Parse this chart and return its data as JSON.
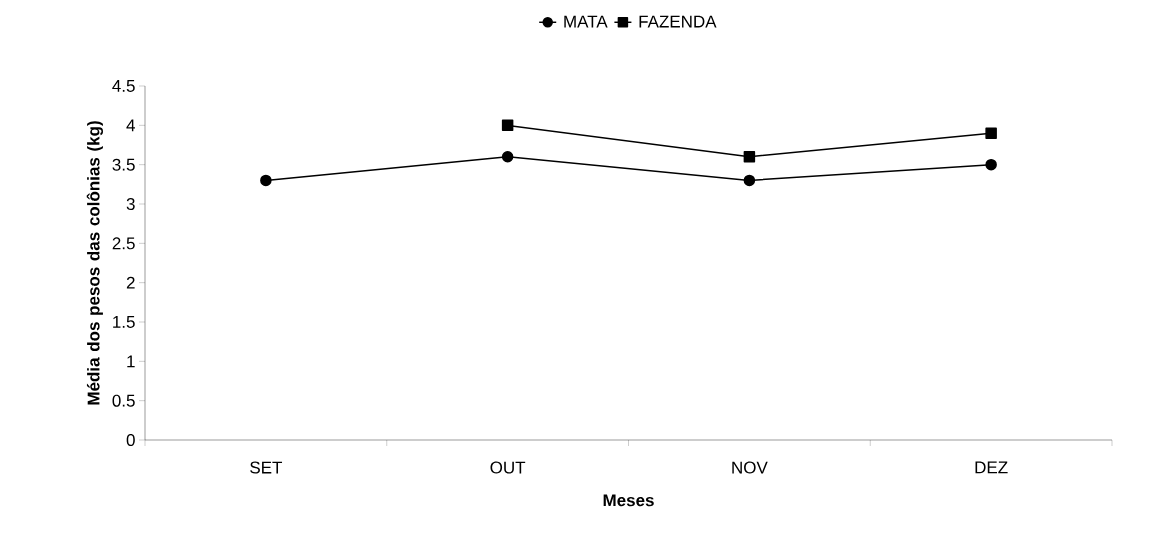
{
  "chart_data": {
    "type": "line",
    "xlabel": "Meses",
    "ylabel": "Média dos pesos das colônias (kg)",
    "categories": [
      "SET",
      "OUT",
      "NOV",
      "DEZ"
    ],
    "series": [
      {
        "name": "MATA",
        "color": "#000000",
        "marker": "circle",
        "values": [
          3.3,
          3.6,
          3.3,
          3.5
        ]
      },
      {
        "name": "FAZENDA",
        "color": "#000000",
        "marker": "square",
        "values": [
          null,
          4.0,
          3.6,
          3.9
        ]
      }
    ],
    "ylim": [
      0,
      4.5
    ],
    "yticks": [
      0,
      0.5,
      1,
      1.5,
      2,
      2.5,
      3,
      3.5,
      4,
      4.5
    ],
    "grid": false,
    "legend": "top",
    "line_style": "solid"
  }
}
